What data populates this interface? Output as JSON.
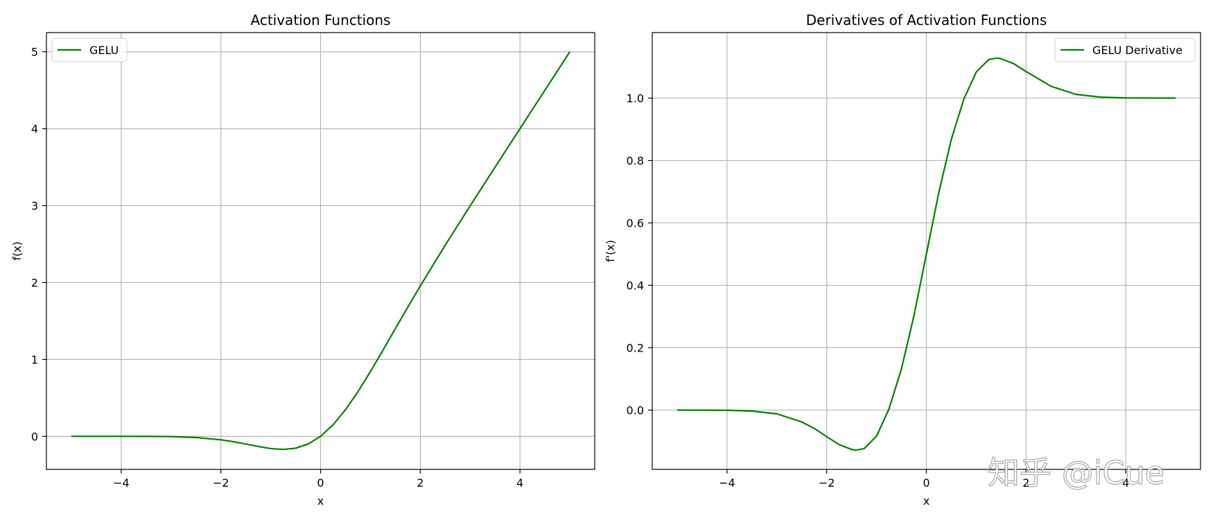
{
  "chart_data": [
    {
      "type": "line",
      "title": "Activation Functions",
      "xlabel": "x",
      "ylabel": "f(x)",
      "xlim": [
        -5.5,
        5.5
      ],
      "ylim": [
        -0.43,
        5.25
      ],
      "xticks": [
        -4,
        -2,
        0,
        2,
        4
      ],
      "xtick_labels": [
        "−4",
        "−2",
        "0",
        "2",
        "4"
      ],
      "yticks": [
        0,
        1,
        2,
        3,
        4,
        5
      ],
      "ytick_labels": [
        "0",
        "1",
        "2",
        "3",
        "4",
        "5"
      ],
      "grid": true,
      "legend_position": "upper-left",
      "series": [
        {
          "name": "GELU",
          "color": "#008000",
          "x": [
            -5,
            -4.5,
            -4,
            -3.5,
            -3,
            -2.5,
            -2,
            -1.75,
            -1.5,
            -1.25,
            -1,
            -0.75,
            -0.5,
            -0.25,
            0,
            0.25,
            0.5,
            0.75,
            1,
            1.25,
            1.5,
            1.75,
            2,
            2.5,
            3,
            3.5,
            4,
            4.5,
            5
          ],
          "y": [
            0,
            0,
            -0.0001,
            -0.0008,
            -0.0036,
            -0.0153,
            -0.0454,
            -0.0701,
            -0.1004,
            -0.1321,
            -0.1588,
            -0.17,
            -0.1543,
            -0.1003,
            0,
            0.1497,
            0.3457,
            0.58,
            0.8412,
            1.1179,
            1.3996,
            1.6799,
            1.9546,
            2.4847,
            2.9964,
            3.4992,
            3.9999,
            4.5,
            5.0
          ]
        }
      ]
    },
    {
      "type": "line",
      "title": "Derivatives of Activation Functions",
      "xlabel": "x",
      "ylabel": "f'(x)",
      "xlim": [
        -5.5,
        5.5
      ],
      "ylim": [
        -0.19,
        1.21
      ],
      "xticks": [
        -4,
        -2,
        0,
        2,
        4
      ],
      "xtick_labels": [
        "−4",
        "−2",
        "0",
        "2",
        "4"
      ],
      "yticks": [
        0.0,
        0.2,
        0.4,
        0.6,
        0.8,
        1.0
      ],
      "ytick_labels": [
        "0.0",
        "0.2",
        "0.4",
        "0.6",
        "0.8",
        "1.0"
      ],
      "grid": true,
      "legend_position": "upper-right",
      "series": [
        {
          "name": "GELU Derivative",
          "color": "#008000",
          "x": [
            -5,
            -4,
            -3.5,
            -3,
            -2.5,
            -2.25,
            -2,
            -1.75,
            -1.5,
            -1.414,
            -1.25,
            -1,
            -0.75,
            -0.5,
            -0.25,
            0,
            0.25,
            0.5,
            0.75,
            1,
            1.25,
            1.414,
            1.5,
            1.75,
            2,
            2.5,
            3,
            3.5,
            4,
            5
          ],
          "y": [
            0,
            -0.0005,
            -0.003,
            -0.0119,
            -0.038,
            -0.0586,
            -0.0852,
            -0.1104,
            -0.1261,
            -0.1285,
            -0.1235,
            -0.0833,
            0.0038,
            0.1325,
            0.3021,
            0.5,
            0.6979,
            0.8675,
            0.9962,
            1.0833,
            1.1235,
            1.1285,
            1.1261,
            1.1104,
            1.0852,
            1.038,
            1.0119,
            1.003,
            1.0005,
            1.0
          ]
        }
      ]
    }
  ],
  "watermark": "知乎 @iCue"
}
